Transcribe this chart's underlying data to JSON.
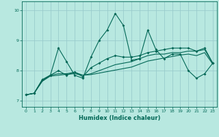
{
  "background_color": "#b8e8e0",
  "grid_color": "#99cccc",
  "line_color": "#006655",
  "xlabel": "Humidex (Indice chaleur)",
  "xlim": [
    -0.5,
    23.5
  ],
  "ylim": [
    6.8,
    10.3
  ],
  "yticks": [
    7,
    8,
    9,
    10
  ],
  "xticks": [
    0,
    1,
    2,
    3,
    4,
    5,
    6,
    7,
    8,
    9,
    10,
    11,
    12,
    13,
    14,
    15,
    16,
    17,
    18,
    19,
    20,
    21,
    22,
    23
  ],
  "series1_x": [
    0,
    1,
    2,
    3,
    4,
    5,
    6,
    7,
    8,
    9,
    10,
    11,
    12,
    13,
    14,
    15,
    16,
    17,
    18,
    19,
    20,
    21,
    22,
    23
  ],
  "series1_y": [
    7.2,
    7.25,
    7.7,
    7.85,
    8.75,
    8.3,
    7.85,
    7.75,
    8.45,
    9.0,
    9.35,
    9.9,
    9.5,
    8.35,
    8.4,
    9.35,
    8.7,
    8.4,
    8.55,
    8.55,
    8.0,
    7.75,
    7.9,
    8.25
  ],
  "series2_x": [
    0,
    1,
    2,
    3,
    4,
    5,
    6,
    7,
    8,
    9,
    10,
    11,
    12,
    13,
    14,
    15,
    16,
    17,
    18,
    19,
    20,
    21,
    22,
    23
  ],
  "series2_y": [
    7.2,
    7.25,
    7.7,
    7.85,
    8.0,
    7.85,
    7.95,
    7.8,
    8.1,
    8.25,
    8.4,
    8.5,
    8.45,
    8.45,
    8.5,
    8.6,
    8.65,
    8.7,
    8.75,
    8.75,
    8.75,
    8.65,
    8.75,
    8.25
  ],
  "series3_x": [
    0,
    1,
    2,
    3,
    4,
    5,
    6,
    7,
    8,
    9,
    10,
    11,
    12,
    13,
    14,
    15,
    16,
    17,
    18,
    19,
    20,
    21,
    22,
    23
  ],
  "series3_y": [
    7.2,
    7.25,
    7.65,
    7.85,
    7.9,
    7.9,
    7.95,
    7.85,
    7.9,
    8.0,
    8.1,
    8.2,
    8.25,
    8.3,
    8.4,
    8.5,
    8.55,
    8.55,
    8.6,
    8.6,
    8.65,
    8.65,
    8.7,
    8.25
  ],
  "series4_x": [
    0,
    1,
    2,
    3,
    4,
    5,
    6,
    7,
    8,
    9,
    10,
    11,
    12,
    13,
    14,
    15,
    16,
    17,
    18,
    19,
    20,
    21,
    22,
    23
  ],
  "series4_y": [
    7.2,
    7.25,
    7.65,
    7.82,
    7.85,
    7.88,
    7.9,
    7.85,
    7.87,
    7.92,
    7.97,
    8.02,
    8.07,
    8.12,
    8.22,
    8.32,
    8.37,
    8.42,
    8.47,
    8.52,
    8.55,
    8.5,
    8.6,
    8.22
  ]
}
